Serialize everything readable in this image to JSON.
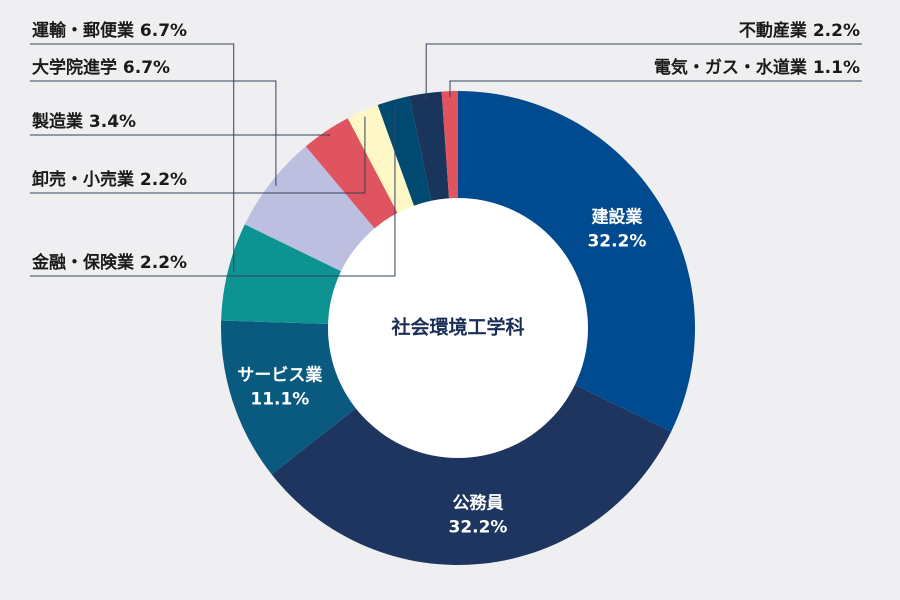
{
  "chart_data": {
    "type": "pie",
    "center_label": "社会環境工学科",
    "slices": [
      {
        "name": "建設業",
        "value": 32.2,
        "value_label": "32.2%",
        "color": "#004a8f",
        "label_pos": "inside"
      },
      {
        "name": "公務員",
        "value": 32.2,
        "value_label": "32.2%",
        "color": "#1d355f",
        "label_pos": "inside"
      },
      {
        "name": "サービス業",
        "value": 11.1,
        "value_label": "11.1%",
        "color": "#0a5a80",
        "label_pos": "inside"
      },
      {
        "name": "運輸・郵便業",
        "value": 6.7,
        "value_label": "6.7%",
        "color": "#0d9392",
        "label_pos": "left"
      },
      {
        "name": "大学院進学",
        "value": 6.7,
        "value_label": "6.7%",
        "color": "#bcbfdf",
        "label_pos": "left"
      },
      {
        "name": "製造業",
        "value": 3.4,
        "value_label": "3.4%",
        "color": "#df545f",
        "label_pos": "left"
      },
      {
        "name": "卸売・小売業",
        "value": 2.2,
        "value_label": "2.2%",
        "color": "#fef7c6",
        "label_pos": "left"
      },
      {
        "name": "金融・保険業",
        "value": 2.2,
        "value_label": "2.2%",
        "color": "#004a72",
        "label_pos": "left"
      },
      {
        "name": "不動産業",
        "value": 2.2,
        "value_label": "2.2%",
        "color": "#19355b",
        "label_pos": "right"
      },
      {
        "name": "電気・ガス・水道業",
        "value": 1.1,
        "value_label": "1.1%",
        "color": "#df545f",
        "label_pos": "right"
      }
    ]
  }
}
